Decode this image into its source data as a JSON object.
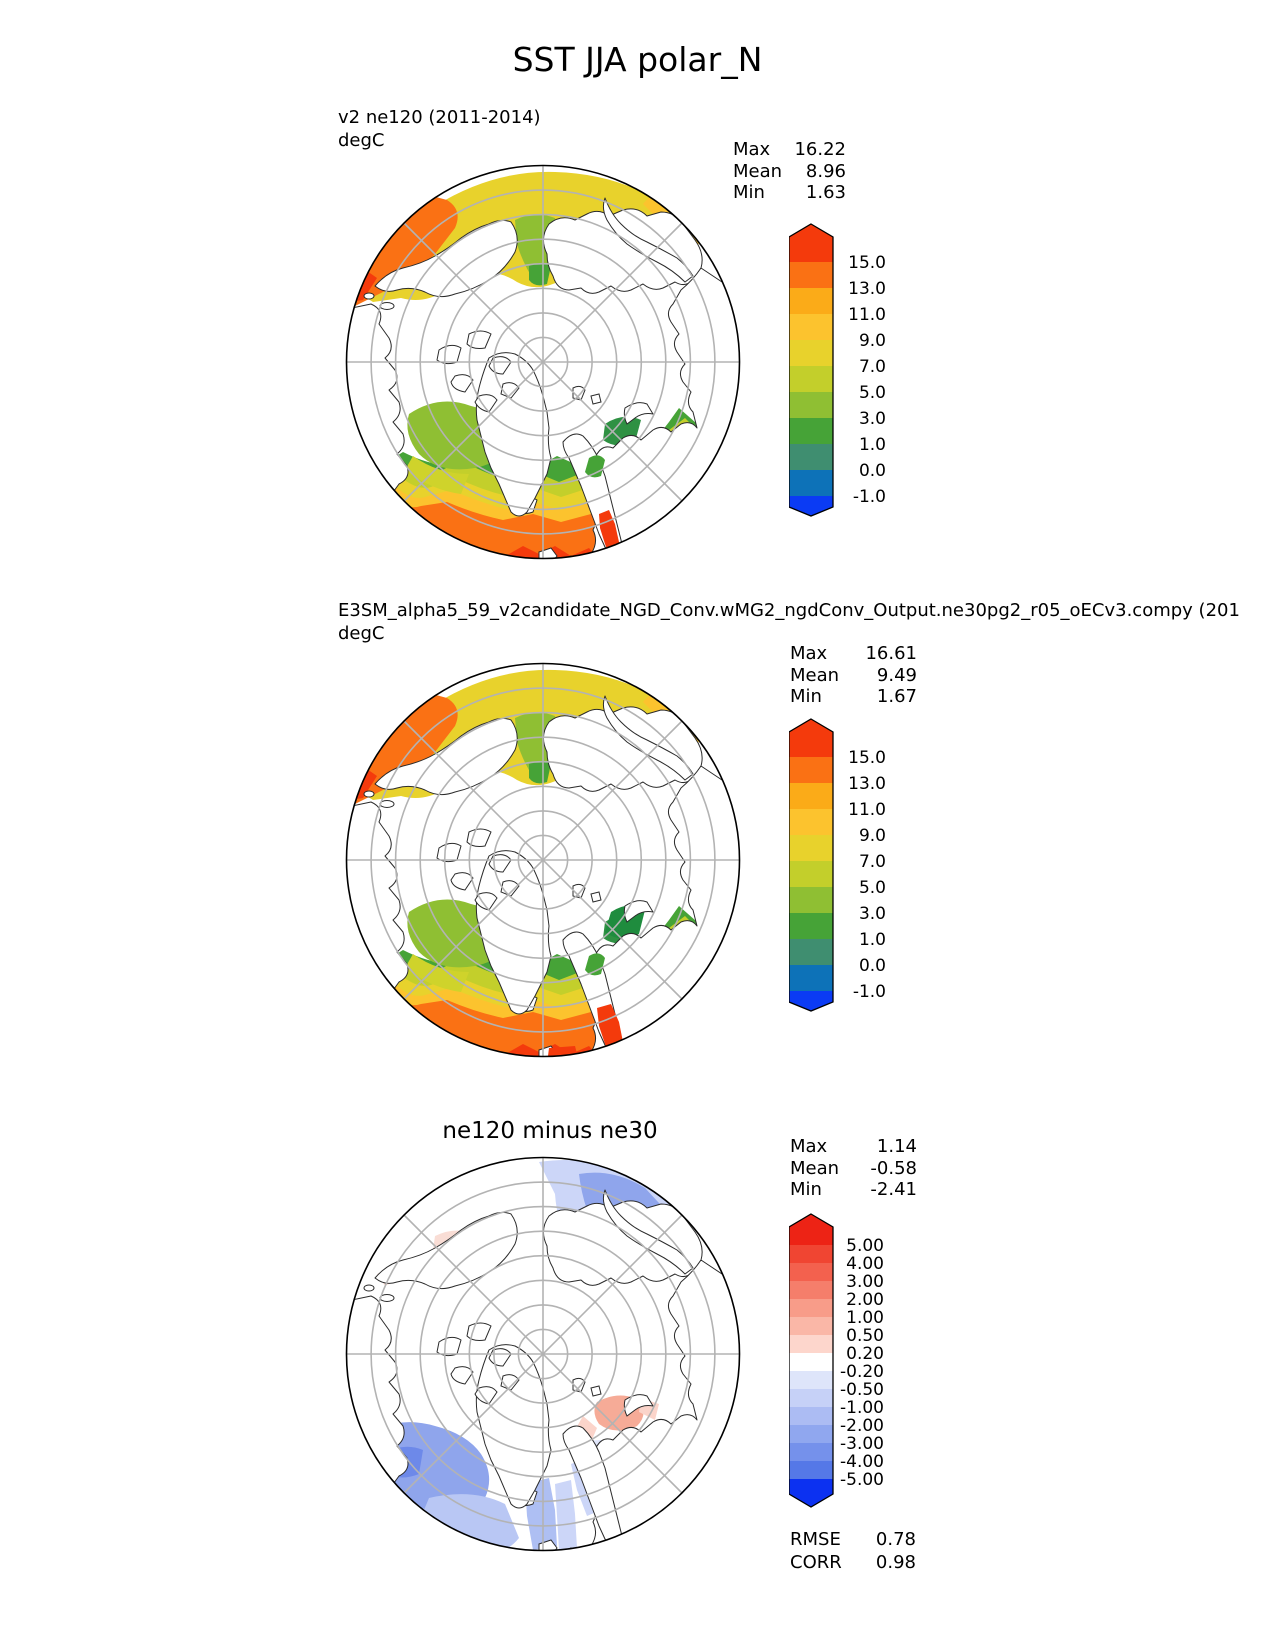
{
  "title": "SST JJA polar_N",
  "colors": {
    "graticule": "#b3b3b3",
    "coastline": "#2b2b2b",
    "map_border": "#000000"
  },
  "panels": [
    {
      "name": "ne120",
      "label_line1": "v2 ne120 (2011-2014)",
      "label_line2": "degC",
      "stats": [
        {
          "k": "Max",
          "v": "16.22"
        },
        {
          "k": "Mean",
          "v": "8.96"
        },
        {
          "k": "Min",
          "v": "1.63"
        }
      ],
      "colorbar": {
        "labels": [
          "15.0",
          "13.0",
          "11.0",
          "9.0",
          "7.0",
          "5.0",
          "3.0",
          "1.0",
          "0.0",
          "-1.0"
        ],
        "colors": [
          "#f43a0c",
          "#fa7114",
          "#fbab18",
          "#fcc32e",
          "#e8d22c",
          "#c3cf2b",
          "#8fbf33",
          "#46a337",
          "#3f8e70",
          "#0d72b8",
          "#0b3bf4"
        ]
      }
    },
    {
      "name": "ne30",
      "label_line1": "E3SM_alpha5_59_v2candidate_NGD_Conv.wMG2_ngdConv_Output.ne30pg2_r05_oECv3.compy (201",
      "label_line2": "degC",
      "stats": [
        {
          "k": "Max",
          "v": "16.61"
        },
        {
          "k": "Mean",
          "v": "9.49"
        },
        {
          "k": "Min",
          "v": "1.67"
        }
      ],
      "colorbar": {
        "labels": [
          "15.0",
          "13.0",
          "11.0",
          "9.0",
          "7.0",
          "5.0",
          "3.0",
          "1.0",
          "0.0",
          "-1.0"
        ],
        "colors": [
          "#f43a0c",
          "#fa7114",
          "#fbab18",
          "#fcc32e",
          "#e8d22c",
          "#c3cf2b",
          "#8fbf33",
          "#46a337",
          "#3f8e70",
          "#0d72b8",
          "#0b3bf4"
        ]
      }
    },
    {
      "name": "diff",
      "title": "ne120 minus ne30",
      "stats": [
        {
          "k": "Max",
          "v": "1.14"
        },
        {
          "k": "Mean",
          "v": "-0.58"
        },
        {
          "k": "Min",
          "v": "-2.41"
        }
      ],
      "colorbar": {
        "labels": [
          "5.00",
          "4.00",
          "3.00",
          "2.00",
          "1.00",
          "0.50",
          "0.20",
          "-0.20",
          "-0.50",
          "-1.00",
          "-2.00",
          "-3.00",
          "-4.00",
          "-5.00"
        ],
        "colors": [
          "#ed2315",
          "#f04532",
          "#f3614e",
          "#f57e6b",
          "#f89c89",
          "#fab7a7",
          "#fdd6cc",
          "#ffffff",
          "#dee5fa",
          "#c6d1f7",
          "#acbcf3",
          "#90a7ef",
          "#7591eb",
          "#5578e7",
          "#0c31f1"
        ]
      },
      "metrics": [
        {
          "k": "RMSE",
          "v": "0.78"
        },
        {
          "k": "CORR",
          "v": "0.98"
        }
      ]
    }
  ],
  "chart_data": [
    {
      "type": "heatmap",
      "title": "v2 ne120 (2011-2014)",
      "units": "degC",
      "projection": "north-polar-stereographic",
      "stats": {
        "max": 16.22,
        "mean": 8.96,
        "min": 1.63
      },
      "contour_levels": [
        -1.0,
        0.0,
        1.0,
        3.0,
        5.0,
        7.0,
        9.0,
        11.0,
        13.0,
        15.0
      ],
      "legend_position": "right",
      "grid": true
    },
    {
      "type": "heatmap",
      "title": "E3SM_alpha5_59_v2candidate_NGD_Conv.wMG2_ngdConv_Output.ne30pg2_r05_oECv3.compy (201",
      "units": "degC",
      "projection": "north-polar-stereographic",
      "stats": {
        "max": 16.61,
        "mean": 9.49,
        "min": 1.67
      },
      "contour_levels": [
        -1.0,
        0.0,
        1.0,
        3.0,
        5.0,
        7.0,
        9.0,
        11.0,
        13.0,
        15.0
      ],
      "legend_position": "right",
      "grid": true
    },
    {
      "type": "heatmap",
      "title": "ne120 minus ne30",
      "projection": "north-polar-stereographic",
      "stats": {
        "max": 1.14,
        "mean": -0.58,
        "min": -2.41
      },
      "contour_levels": [
        -5.0,
        -4.0,
        -3.0,
        -2.0,
        -1.0,
        -0.5,
        -0.2,
        0.2,
        0.5,
        1.0,
        2.0,
        3.0,
        4.0,
        5.0
      ],
      "rmse": 0.78,
      "corr": 0.98,
      "legend_position": "right",
      "grid": true
    }
  ]
}
